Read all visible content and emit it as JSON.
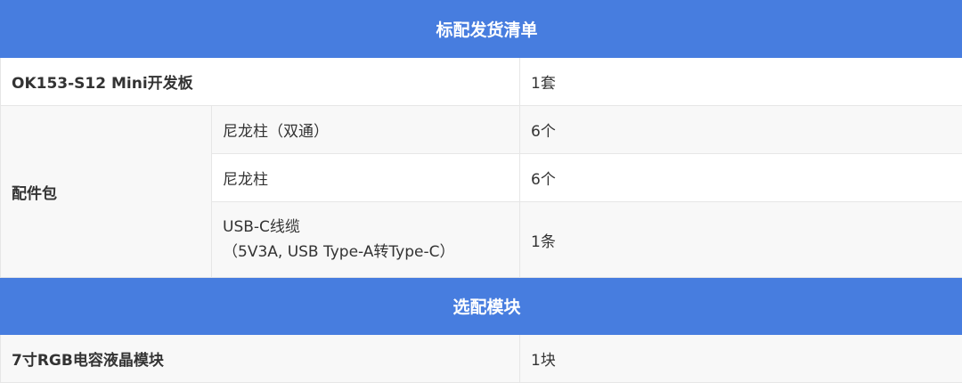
{
  "section1_title": "标配发货清单",
  "rows": [
    {
      "name": "OK153-S12 Mini开发板",
      "qty": "1套"
    },
    {
      "group": "配件包",
      "items": [
        {
          "name": "尼龙柱（双通）",
          "qty": "6个"
        },
        {
          "name": "尼龙柱",
          "qty": "6个"
        },
        {
          "name_line1": "USB-C线缆",
          "name_line2": "（5V3A, USB Type-A转Type-C）",
          "qty": "1条"
        }
      ]
    }
  ],
  "section2_title": "选配模块",
  "optional": [
    {
      "name": "7寸RGB电容液晶模块",
      "qty": "1块"
    }
  ],
  "colors": {
    "header": "#477ddf"
  }
}
